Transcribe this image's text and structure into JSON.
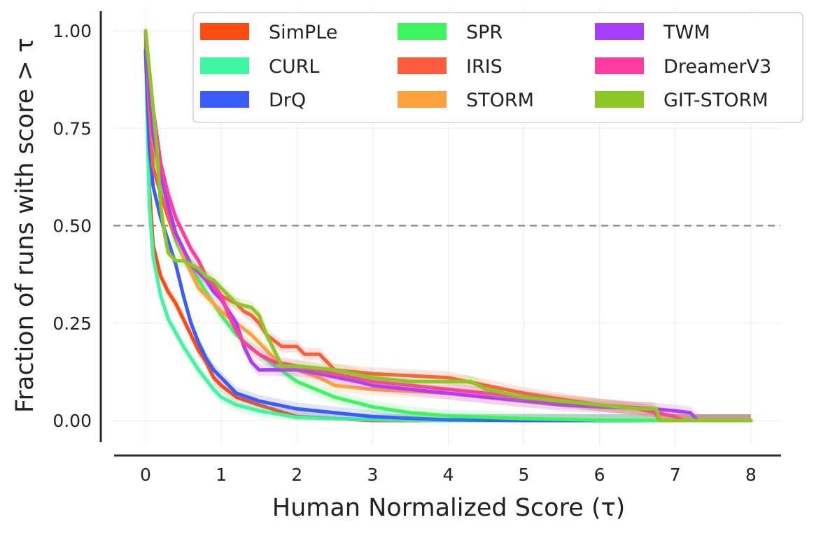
{
  "chart_data": {
    "type": "line",
    "title": "",
    "xlabel": "Human Normalized Score (τ)",
    "ylabel": "Fraction of runs with score  > τ",
    "xlim": [
      -0.4,
      8.4
    ],
    "ylim": [
      -0.09,
      1.04
    ],
    "x_ticks": [
      "0",
      "1",
      "2",
      "3",
      "4",
      "5",
      "6",
      "7",
      "8"
    ],
    "y_ticks": [
      "0.00",
      "0.25",
      "0.50",
      "0.75",
      "1.00"
    ],
    "grid": true,
    "reference_line": {
      "y": 0.5,
      "style": "dashed"
    },
    "legend_position": "top-right",
    "series": [
      {
        "name": "SimPLe",
        "color": "#ff4a12",
        "points": [
          [
            0,
            1.0
          ],
          [
            0.05,
            0.6
          ],
          [
            0.1,
            0.45
          ],
          [
            0.2,
            0.37
          ],
          [
            0.3,
            0.33
          ],
          [
            0.4,
            0.3
          ],
          [
            0.5,
            0.26
          ],
          [
            0.6,
            0.22
          ],
          [
            0.7,
            0.18
          ],
          [
            0.8,
            0.15
          ],
          [
            0.9,
            0.11
          ],
          [
            1.0,
            0.09
          ],
          [
            1.2,
            0.06
          ],
          [
            1.5,
            0.04
          ],
          [
            2.0,
            0.01
          ],
          [
            3.0,
            0.0
          ],
          [
            8.0,
            0.0
          ]
        ]
      },
      {
        "name": "CURL",
        "color": "#3ff7a0",
        "points": [
          [
            0,
            0.95
          ],
          [
            0.05,
            0.55
          ],
          [
            0.1,
            0.42
          ],
          [
            0.2,
            0.32
          ],
          [
            0.3,
            0.26
          ],
          [
            0.5,
            0.19
          ],
          [
            0.7,
            0.13
          ],
          [
            0.9,
            0.08
          ],
          [
            1.0,
            0.06
          ],
          [
            1.2,
            0.04
          ],
          [
            1.5,
            0.025
          ],
          [
            2.0,
            0.008
          ],
          [
            3.0,
            0.002
          ],
          [
            4.0,
            0.0
          ],
          [
            8.0,
            0.0
          ]
        ]
      },
      {
        "name": "DrQ",
        "color": "#3a5cff",
        "points": [
          [
            0,
            0.95
          ],
          [
            0.05,
            0.7
          ],
          [
            0.1,
            0.6
          ],
          [
            0.2,
            0.52
          ],
          [
            0.3,
            0.46
          ],
          [
            0.4,
            0.4
          ],
          [
            0.5,
            0.32
          ],
          [
            0.6,
            0.25
          ],
          [
            0.7,
            0.2
          ],
          [
            0.8,
            0.16
          ],
          [
            0.9,
            0.13
          ],
          [
            1.0,
            0.11
          ],
          [
            1.2,
            0.07
          ],
          [
            1.5,
            0.05
          ],
          [
            2.0,
            0.03
          ],
          [
            2.5,
            0.02
          ],
          [
            3.0,
            0.01
          ],
          [
            4.0,
            0.002
          ],
          [
            5.0,
            0.0
          ],
          [
            8.0,
            0.0
          ]
        ]
      },
      {
        "name": "SPR",
        "color": "#3df55f",
        "points": [
          [
            0,
            1.0
          ],
          [
            0.05,
            0.85
          ],
          [
            0.1,
            0.72
          ],
          [
            0.2,
            0.6
          ],
          [
            0.3,
            0.52
          ],
          [
            0.4,
            0.46
          ],
          [
            0.5,
            0.42
          ],
          [
            0.6,
            0.39
          ],
          [
            0.7,
            0.36
          ],
          [
            0.8,
            0.33
          ],
          [
            0.9,
            0.3
          ],
          [
            1.0,
            0.27
          ],
          [
            1.2,
            0.22
          ],
          [
            1.5,
            0.17
          ],
          [
            2.0,
            0.1
          ],
          [
            2.5,
            0.06
          ],
          [
            3.0,
            0.035
          ],
          [
            3.5,
            0.02
          ],
          [
            4.0,
            0.012
          ],
          [
            5.0,
            0.005
          ],
          [
            6.0,
            0.001
          ],
          [
            7.0,
            0.0
          ],
          [
            8.0,
            0.0
          ]
        ]
      },
      {
        "name": "IRIS",
        "color": "#ff5c3d",
        "points": [
          [
            0,
            1.0
          ],
          [
            0.05,
            0.8
          ],
          [
            0.1,
            0.65
          ],
          [
            0.2,
            0.58
          ],
          [
            0.3,
            0.52
          ],
          [
            0.4,
            0.47
          ],
          [
            0.5,
            0.43
          ],
          [
            0.6,
            0.4
          ],
          [
            0.7,
            0.38
          ],
          [
            0.8,
            0.36
          ],
          [
            0.9,
            0.34
          ],
          [
            1.0,
            0.32
          ],
          [
            1.2,
            0.3
          ],
          [
            1.3,
            0.28
          ],
          [
            1.4,
            0.27
          ],
          [
            1.5,
            0.25
          ],
          [
            1.6,
            0.22
          ],
          [
            1.8,
            0.19
          ],
          [
            2.0,
            0.19
          ],
          [
            2.1,
            0.17
          ],
          [
            2.3,
            0.17
          ],
          [
            2.5,
            0.13
          ],
          [
            3.0,
            0.12
          ],
          [
            4.0,
            0.11
          ],
          [
            4.5,
            0.09
          ],
          [
            5.0,
            0.07
          ],
          [
            6.0,
            0.04
          ],
          [
            6.7,
            0.03
          ],
          [
            6.8,
            0.0
          ],
          [
            8.0,
            0.0
          ]
        ]
      },
      {
        "name": "STORM",
        "color": "#ffa23d",
        "points": [
          [
            0,
            1.0
          ],
          [
            0.05,
            0.85
          ],
          [
            0.1,
            0.72
          ],
          [
            0.2,
            0.62
          ],
          [
            0.3,
            0.55
          ],
          [
            0.4,
            0.48
          ],
          [
            0.5,
            0.42
          ],
          [
            0.6,
            0.38
          ],
          [
            0.7,
            0.34
          ],
          [
            0.8,
            0.32
          ],
          [
            0.9,
            0.3
          ],
          [
            1.0,
            0.28
          ],
          [
            1.2,
            0.25
          ],
          [
            1.4,
            0.22
          ],
          [
            1.6,
            0.18
          ],
          [
            1.8,
            0.14
          ],
          [
            2.0,
            0.13
          ],
          [
            2.3,
            0.11
          ],
          [
            2.5,
            0.09
          ],
          [
            3.0,
            0.08
          ],
          [
            4.0,
            0.07
          ],
          [
            5.0,
            0.05
          ],
          [
            6.0,
            0.04
          ],
          [
            6.5,
            0.03
          ],
          [
            7.0,
            0.01
          ],
          [
            7.2,
            0.0
          ],
          [
            8.0,
            0.0
          ]
        ]
      },
      {
        "name": "TWM",
        "color": "#a63dff",
        "points": [
          [
            0,
            1.0
          ],
          [
            0.05,
            0.85
          ],
          [
            0.1,
            0.73
          ],
          [
            0.2,
            0.63
          ],
          [
            0.3,
            0.55
          ],
          [
            0.4,
            0.48
          ],
          [
            0.5,
            0.44
          ],
          [
            0.6,
            0.4
          ],
          [
            0.7,
            0.38
          ],
          [
            0.8,
            0.36
          ],
          [
            0.9,
            0.33
          ],
          [
            1.0,
            0.31
          ],
          [
            1.1,
            0.28
          ],
          [
            1.2,
            0.25
          ],
          [
            1.3,
            0.19
          ],
          [
            1.4,
            0.15
          ],
          [
            1.5,
            0.13
          ],
          [
            2.0,
            0.13
          ],
          [
            2.3,
            0.12
          ],
          [
            2.8,
            0.1
          ],
          [
            3.0,
            0.09
          ],
          [
            3.5,
            0.08
          ],
          [
            4.0,
            0.07
          ],
          [
            4.5,
            0.06
          ],
          [
            5.0,
            0.05
          ],
          [
            5.5,
            0.04
          ],
          [
            6.0,
            0.035
          ],
          [
            6.7,
            0.03
          ],
          [
            7.0,
            0.025
          ],
          [
            7.2,
            0.02
          ],
          [
            7.3,
            0.0
          ],
          [
            8.0,
            0.0
          ]
        ]
      },
      {
        "name": "DreamerV3",
        "color": "#ff3d9e",
        "points": [
          [
            0,
            1.0
          ],
          [
            0.05,
            0.9
          ],
          [
            0.1,
            0.8
          ],
          [
            0.2,
            0.66
          ],
          [
            0.3,
            0.58
          ],
          [
            0.4,
            0.52
          ],
          [
            0.5,
            0.48
          ],
          [
            0.6,
            0.44
          ],
          [
            0.7,
            0.41
          ],
          [
            0.8,
            0.37
          ],
          [
            0.9,
            0.35
          ],
          [
            1.0,
            0.32
          ],
          [
            1.1,
            0.27
          ],
          [
            1.2,
            0.23
          ],
          [
            1.3,
            0.2
          ],
          [
            1.5,
            0.17
          ],
          [
            1.7,
            0.15
          ],
          [
            2.0,
            0.14
          ],
          [
            2.5,
            0.12
          ],
          [
            3.0,
            0.1
          ],
          [
            3.5,
            0.09
          ],
          [
            4.0,
            0.08
          ],
          [
            4.5,
            0.07
          ],
          [
            5.0,
            0.06
          ],
          [
            5.5,
            0.05
          ],
          [
            6.0,
            0.04
          ],
          [
            6.5,
            0.03
          ],
          [
            7.0,
            0.01
          ],
          [
            7.1,
            0.0
          ],
          [
            8.0,
            0.0
          ]
        ]
      },
      {
        "name": "GIT-STORM",
        "color": "#8bc826",
        "points": [
          [
            0,
            1.0
          ],
          [
            0.05,
            0.9
          ],
          [
            0.1,
            0.8
          ],
          [
            0.15,
            0.7
          ],
          [
            0.2,
            0.55
          ],
          [
            0.25,
            0.48
          ],
          [
            0.3,
            0.43
          ],
          [
            0.4,
            0.41
          ],
          [
            0.5,
            0.41
          ],
          [
            0.6,
            0.4
          ],
          [
            0.7,
            0.39
          ],
          [
            0.8,
            0.37
          ],
          [
            0.9,
            0.36
          ],
          [
            1.0,
            0.34
          ],
          [
            1.1,
            0.32
          ],
          [
            1.2,
            0.3
          ],
          [
            1.4,
            0.29
          ],
          [
            1.5,
            0.27
          ],
          [
            1.6,
            0.22
          ],
          [
            1.7,
            0.18
          ],
          [
            1.8,
            0.14
          ],
          [
            2.0,
            0.14
          ],
          [
            2.5,
            0.13
          ],
          [
            3.0,
            0.11
          ],
          [
            3.5,
            0.1
          ],
          [
            4.0,
            0.1
          ],
          [
            4.3,
            0.1
          ],
          [
            4.5,
            0.08
          ],
          [
            5.0,
            0.06
          ],
          [
            5.5,
            0.05
          ],
          [
            6.0,
            0.04
          ],
          [
            6.5,
            0.03
          ],
          [
            6.75,
            0.03
          ],
          [
            6.8,
            0.0
          ],
          [
            8.0,
            0.0
          ]
        ]
      }
    ]
  }
}
